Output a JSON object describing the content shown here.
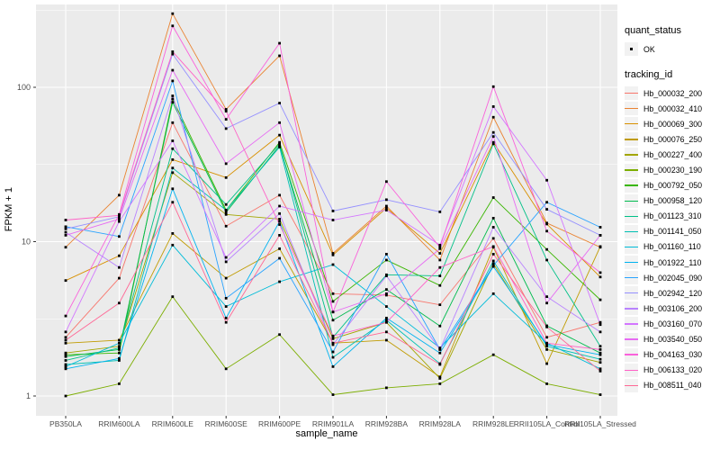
{
  "chart_data": {
    "type": "line",
    "xlabel": "sample_name",
    "ylabel": "FPKM + 1",
    "y_scale": "log10",
    "y_ticks": [
      1,
      10,
      100
    ],
    "ylim": [
      0.95,
      320
    ],
    "grid": true,
    "panel_bg": "#EBEBEB",
    "grid_color": "#FFFFFF",
    "point_color": "#000000",
    "tick_label_color": "#4D4D4D",
    "legend_position": "right",
    "legend": {
      "quant_status_title": "quant_status",
      "quant_status_items": [
        "OK"
      ],
      "tracking_title": "tracking_id"
    },
    "categories": [
      "PB350LA",
      "RRIM600LA",
      "RRIM600LE",
      "RRIM600SE",
      "RRIM600PE",
      "RRIM901LA",
      "RRIM928BA",
      "RRIM928LA",
      "RRIM928LE",
      "RRII105LA_Control",
      "RRII105LA_Stressed"
    ],
    "series": [
      {
        "name": "Hb_000032_200",
        "color": "#F8766D",
        "values": [
          2.4,
          5.8,
          59,
          12.6,
          20,
          4.6,
          4.5,
          3.9,
          10.5,
          2.4,
          3.0
        ]
      },
      {
        "name": "Hb_000032_410",
        "color": "#EA8331",
        "values": [
          9.2,
          20,
          300,
          72,
          160,
          8.4,
          17,
          7.6,
          64,
          13.2,
          9.2
        ]
      },
      {
        "name": "Hb_000069_300",
        "color": "#D89000",
        "values": [
          5.6,
          8.1,
          34,
          26,
          49,
          8.2,
          16.5,
          8.4,
          44,
          13.0,
          5.9
        ]
      },
      {
        "name": "Hb_000076_250",
        "color": "#C09B00",
        "values": [
          2.2,
          2.3,
          11.3,
          5.8,
          9.0,
          2.2,
          2.3,
          1.33,
          9.2,
          1.62,
          9.3
        ]
      },
      {
        "name": "Hb_000227_400",
        "color": "#A3A500",
        "values": [
          1.9,
          2.1,
          28,
          15,
          14,
          2.35,
          3.0,
          1.3,
          7.2,
          2.0,
          1.65
        ]
      },
      {
        "name": "Hb_000230_190",
        "color": "#7CAE00",
        "values": [
          1.0,
          1.2,
          4.4,
          1.5,
          2.5,
          1.02,
          1.13,
          1.2,
          1.85,
          1.2,
          1.02
        ]
      },
      {
        "name": "Hb_000792_050",
        "color": "#39B600",
        "values": [
          1.85,
          1.9,
          84,
          16,
          44,
          4.1,
          7.6,
          5.2,
          19.3,
          8.9,
          4.2
        ]
      },
      {
        "name": "Hb_000958_120",
        "color": "#00BB4E",
        "values": [
          1.8,
          2.0,
          80,
          15.5,
          42,
          3.1,
          4.9,
          2.84,
          14.2,
          2.85,
          1.9
        ]
      },
      {
        "name": "Hb_001123_310",
        "color": "#00C087",
        "values": [
          1.7,
          2.05,
          40,
          17.4,
          43,
          2.4,
          6.1,
          6.0,
          43,
          7.6,
          2.1
        ]
      },
      {
        "name": "Hb_001141_050",
        "color": "#00C0B3",
        "values": [
          1.6,
          1.7,
          30,
          16,
          41,
          1.78,
          3.1,
          1.62,
          7.5,
          2.1,
          1.73
        ]
      },
      {
        "name": "Hb_001160_110",
        "color": "#00BCD8",
        "values": [
          1.55,
          2.2,
          9.5,
          3.8,
          5.5,
          7.1,
          3.8,
          2.05,
          4.6,
          2.2,
          1.5
        ]
      },
      {
        "name": "Hb_001922_110",
        "color": "#00B3F0",
        "values": [
          1.5,
          1.75,
          22,
          3.2,
          13.5,
          1.55,
          3.2,
          1.9,
          6.9,
          2.15,
          1.85
        ]
      },
      {
        "name": "Hb_002045_090",
        "color": "#29A3FF",
        "values": [
          12.5,
          10.8,
          110,
          4.3,
          7.8,
          1.93,
          8.3,
          2.0,
          7.0,
          18,
          12.4
        ]
      },
      {
        "name": "Hb_002942_120",
        "color": "#9590FF",
        "values": [
          12.1,
          14.5,
          164,
          54,
          79,
          15.8,
          18.7,
          15.6,
          51,
          16.2,
          11.0
        ]
      },
      {
        "name": "Hb_003106_200",
        "color": "#B983FF",
        "values": [
          11.5,
          6.8,
          88,
          7.4,
          15.2,
          2.15,
          6.0,
          2.0,
          12.4,
          4.4,
          2.6
        ]
      },
      {
        "name": "Hb_003160_070",
        "color": "#D376FF",
        "values": [
          2.6,
          13.5,
          45,
          7.9,
          17,
          13.8,
          16,
          9.5,
          75,
          25,
          2.9
        ]
      },
      {
        "name": "Hb_003540_050",
        "color": "#E76BF3",
        "values": [
          11.0,
          14.0,
          129,
          32,
          59,
          3.5,
          4.6,
          9.0,
          48,
          4.0,
          11.0
        ]
      },
      {
        "name": "Hb_004163_030",
        "color": "#FA62DB",
        "values": [
          3.3,
          15,
          250,
          62,
          193,
          3.5,
          24.5,
          9.2,
          101,
          11.7,
          6.3
        ]
      },
      {
        "name": "Hb_006133_020",
        "color": "#FF61C7",
        "values": [
          13.8,
          14.8,
          170,
          70,
          12.9,
          2.45,
          3.0,
          6.8,
          9.3,
          2.2,
          2.0
        ]
      },
      {
        "name": "Hb_008511_040",
        "color": "#FF6896",
        "values": [
          2.3,
          4.0,
          18,
          3.0,
          11,
          2.2,
          2.6,
          1.6,
          8.3,
          2.8,
          1.45
        ]
      }
    ]
  }
}
